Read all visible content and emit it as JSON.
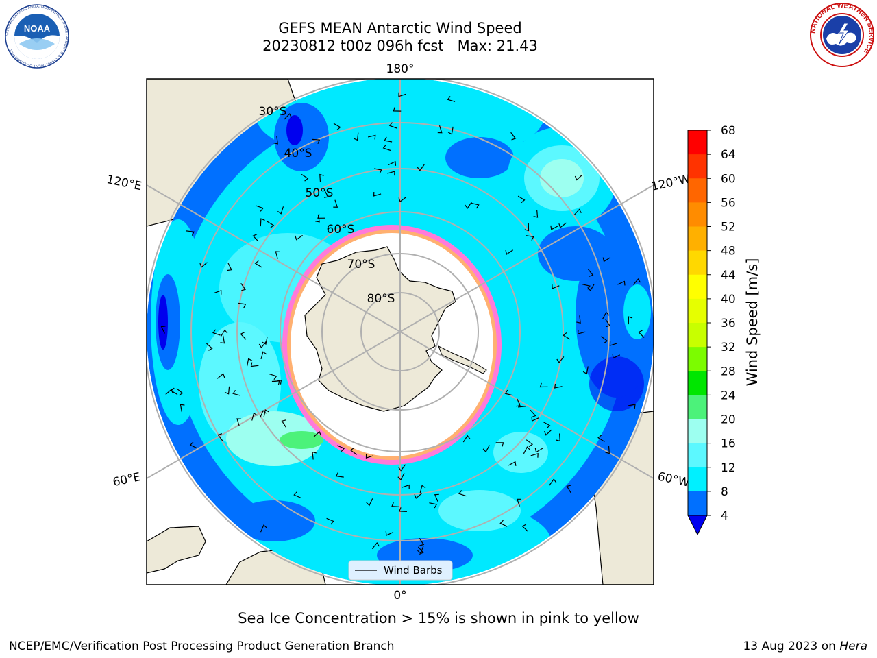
{
  "title": {
    "line1": "GEFS MEAN Antarctic Wind Speed",
    "line2": "20230812 t00z 096h fcst   Max: 21.43"
  },
  "map": {
    "projection": "south-polar-stereographic",
    "longitude_labels": [
      "180°",
      "120°E",
      "120°W",
      "60°E",
      "60°W",
      "0°"
    ],
    "latitude_labels": [
      "30°S",
      "40°S",
      "50°S",
      "60°S",
      "70°S",
      "80°S"
    ],
    "legend_label": "Wind Barbs"
  },
  "colorbar": {
    "label": "Wind Speed [m/s]",
    "ticks": [
      "68",
      "64",
      "60",
      "56",
      "52",
      "48",
      "44",
      "40",
      "36",
      "32",
      "28",
      "24",
      "20",
      "16",
      "12",
      "8",
      "4"
    ],
    "colors": [
      "#ff0000",
      "#ff3300",
      "#ff6600",
      "#ff8c00",
      "#ffb000",
      "#ffd800",
      "#ffff00",
      "#e6ff00",
      "#c8ff00",
      "#7cfc00",
      "#00e600",
      "#4cf27a",
      "#9dfff0",
      "#5cf8ff",
      "#00f0ff",
      "#0070ff"
    ],
    "extend_color": "#0000ee"
  },
  "caption": "Sea Ice Concentration > 15% is shown in pink to yellow",
  "footer": {
    "credit": "NCEP/EMC/Verification Post Processing Product Generation Branch",
    "date": "13 Aug 2023 on",
    "machine": "Hera"
  },
  "logos": {
    "noaa": "NOAA",
    "noaa_ring": "NATIONAL OCEANIC AND ATMOSPHERIC ADMINISTRATION · U.S. DEPARTMENT OF COMMERCE",
    "nws": "NATIONAL WEATHER SERVICE"
  }
}
